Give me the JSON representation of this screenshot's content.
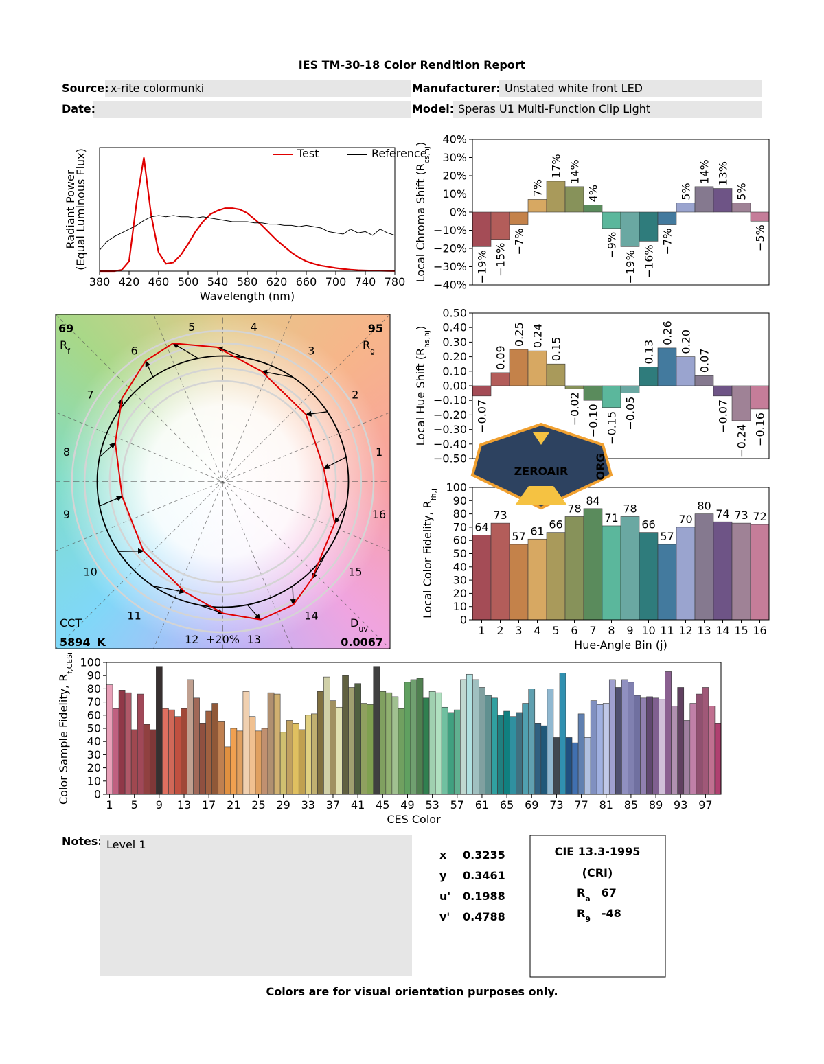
{
  "header": {
    "title": "IES TM-30-18 Color Rendition Report",
    "fields": [
      {
        "label": "Source:",
        "value": "x-rite colormunki"
      },
      {
        "label": "Manufacturer:",
        "value": "Unstated white front LED"
      },
      {
        "label": "Date:"
      },
      {
        "label": "Model:",
        "value": "Speras U1 Multi-Function Clip Light"
      }
    ]
  },
  "chart_data": [
    {
      "type": "line",
      "ylabel": "Radiant Power",
      "ylabel_note": "(Equal Luminous Flux)",
      "xlabel": "Wavelength (nm)",
      "x": [
        380,
        390,
        400,
        410,
        420,
        430,
        440,
        450,
        460,
        470,
        480,
        490,
        500,
        510,
        520,
        530,
        540,
        550,
        560,
        570,
        580,
        590,
        600,
        610,
        620,
        630,
        640,
        650,
        660,
        670,
        680,
        690,
        700,
        710,
        720,
        730,
        740,
        750,
        760,
        770,
        780
      ],
      "xlim": [
        380,
        780
      ],
      "xticks": [
        380,
        420,
        460,
        500,
        540,
        580,
        620,
        660,
        700,
        740,
        780
      ],
      "ylim": [
        0,
        1
      ],
      "legend": "upper right",
      "series": [
        {
          "name": "Test",
          "color": "#e00000",
          "values": [
            0,
            0,
            0,
            0.01,
            0.08,
            0.55,
            0.92,
            0.45,
            0.15,
            0.06,
            0.07,
            0.13,
            0.22,
            0.32,
            0.4,
            0.46,
            0.49,
            0.51,
            0.51,
            0.5,
            0.47,
            0.42,
            0.37,
            0.31,
            0.25,
            0.2,
            0.15,
            0.11,
            0.08,
            0.06,
            0.045,
            0.035,
            0.025,
            0.018,
            0.012,
            0.008,
            0.006,
            0.004,
            0.003,
            0.002,
            0.001
          ]
        },
        {
          "name": "Reference",
          "color": "#000000",
          "values": [
            0.17,
            0.24,
            0.28,
            0.31,
            0.34,
            0.37,
            0.41,
            0.44,
            0.45,
            0.44,
            0.45,
            0.44,
            0.44,
            0.43,
            0.44,
            0.43,
            0.42,
            0.41,
            0.4,
            0.4,
            0.4,
            0.39,
            0.39,
            0.38,
            0.38,
            0.37,
            0.37,
            0.36,
            0.37,
            0.36,
            0.35,
            0.32,
            0.31,
            0.3,
            0.34,
            0.31,
            0.32,
            0.29,
            0.34,
            0.31,
            0.29
          ]
        }
      ]
    },
    {
      "type": "bar",
      "ylabel": {
        "text": "Local Chroma Shift (R",
        "sub": "cs,hj",
        "end": ")"
      },
      "values": [
        -19,
        -15,
        -7,
        7,
        17,
        14,
        4,
        -9,
        -19,
        -16,
        -7,
        5,
        14,
        13,
        5,
        -5
      ],
      "value_labels": [
        "−19%",
        "−15%",
        "−7%",
        "7%",
        "17%",
        "14%",
        "4%",
        "−9%",
        "−19%",
        "−16%",
        "−7%",
        "5%",
        "14%",
        "13%",
        "5%",
        "−5%"
      ],
      "colors": [
        "#a44c56",
        "#b35d5a",
        "#c4824a",
        "#d7a862",
        "#a99a5b",
        "#87925a",
        "#5a8b5c",
        "#5bb79c",
        "#6aa8a2",
        "#2f7c7c",
        "#437a9e",
        "#9aa4cf",
        "#85798f",
        "#6e5486",
        "#9f8296",
        "#c57d99"
      ],
      "ylim": [
        -40,
        40
      ],
      "yticks": [
        {
          "value": -40,
          "label": "−40%"
        },
        {
          "value": -30,
          "label": "−30%"
        },
        {
          "value": -20,
          "label": "−20%"
        },
        {
          "value": -10,
          "label": "−10%"
        },
        {
          "value": 0,
          "label": "0%"
        },
        {
          "value": 10,
          "label": "10%"
        },
        {
          "value": 20,
          "label": "20%"
        },
        {
          "value": 30,
          "label": "30%"
        },
        {
          "value": 40,
          "label": "40%"
        }
      ]
    },
    {
      "type": "bar",
      "ylabel": {
        "text": "Local Hue Shift (R",
        "sub": "hs,hj",
        "end": ")"
      },
      "values": [
        -0.07,
        0.09,
        0.25,
        0.24,
        0.15,
        -0.02,
        -0.1,
        -0.15,
        -0.05,
        0.13,
        0.26,
        0.2,
        0.07,
        -0.07,
        -0.24,
        -0.16
      ],
      "value_labels": [
        "−0.07",
        "0.09",
        "0.25",
        "0.24",
        "0.15",
        "−0.02",
        "−0.10",
        "−0.15",
        "−0.05",
        "0.13",
        "0.26",
        "0.20",
        "0.07",
        "−0.07",
        "−0.24",
        "−0.16"
      ],
      "colors": [
        "#a44c56",
        "#b35d5a",
        "#c4824a",
        "#d7a862",
        "#a99a5b",
        "#87925a",
        "#5a8b5c",
        "#5bb79c",
        "#6aa8a2",
        "#2f7c7c",
        "#437a9e",
        "#9aa4cf",
        "#85798f",
        "#6e5486",
        "#9f8296",
        "#c57d99"
      ],
      "ylim": [
        -0.5,
        0.5
      ],
      "yticks": [
        {
          "value": -0.5,
          "label": "−0.50"
        },
        {
          "value": -0.4,
          "label": "−0.40"
        },
        {
          "value": -0.3,
          "label": "−0.30"
        },
        {
          "value": -0.2,
          "label": "−0.20"
        },
        {
          "value": -0.1,
          "label": "−0.10"
        },
        {
          "value": 0,
          "label": "0.00"
        },
        {
          "value": 0.1,
          "label": "0.10"
        },
        {
          "value": 0.2,
          "label": "0.20"
        },
        {
          "value": 0.3,
          "label": "0.30"
        },
        {
          "value": 0.4,
          "label": "0.40"
        },
        {
          "value": 0.5,
          "label": "0.50"
        }
      ]
    },
    {
      "type": "bar",
      "ylabel": {
        "text": "Local Color Fidelity, R",
        "sub": "fh,j"
      },
      "xlabel": "Hue-Angle Bin (j)",
      "categories": [
        "1",
        "2",
        "3",
        "4",
        "5",
        "6",
        "7",
        "8",
        "9",
        "10",
        "11",
        "12",
        "13",
        "14",
        "15",
        "16"
      ],
      "values": [
        64,
        73,
        57,
        61,
        66,
        78,
        84,
        71,
        78,
        66,
        57,
        70,
        80,
        74,
        73,
        72
      ],
      "data_labels": true,
      "colors": [
        "#a44c56",
        "#b35d5a",
        "#c4824a",
        "#d7a862",
        "#a99a5b",
        "#87925a",
        "#5a8b5c",
        "#5bb79c",
        "#6aa8a2",
        "#2f7c7c",
        "#437a9e",
        "#9aa4cf",
        "#85798f",
        "#6e5486",
        "#9f8296",
        "#c57d99"
      ],
      "ylim": [
        0,
        100
      ],
      "yticks": [
        0,
        10,
        20,
        30,
        40,
        50,
        60,
        70,
        80,
        90,
        100
      ]
    },
    {
      "type": "vector",
      "categories": [
        "1",
        "2",
        "3",
        "4",
        "5",
        "6",
        "7",
        "8",
        "9",
        "10",
        "11",
        "12",
        "13",
        "14",
        "15",
        "16"
      ],
      "rf": {
        "value": 69,
        "label": "R",
        "sub": "f"
      },
      "rg": {
        "value": 95,
        "label": "R",
        "sub": "g"
      },
      "cct": {
        "label": "CCT",
        "value": 5894,
        "unit": "K"
      },
      "duv": {
        "label": "D",
        "sub": "uv",
        "value": 0.0067
      },
      "annotation": "+20%",
      "test_color": "#e00000",
      "reference_color": "#000000"
    },
    {
      "type": "bar",
      "ylabel": {
        "text": "Color Sample Fidelity, R",
        "sub": "f,CESi"
      },
      "xlabel": "CES Color",
      "categories": [
        "1",
        null,
        null,
        null,
        "5",
        null,
        null,
        null,
        "9",
        null,
        null,
        null,
        "13",
        null,
        null,
        null,
        "17",
        null,
        null,
        null,
        "21",
        null,
        null,
        null,
        "25",
        null,
        null,
        null,
        "29",
        null,
        null,
        null,
        "33",
        null,
        null,
        null,
        "37",
        null,
        null,
        null,
        "41",
        null,
        null,
        null,
        "45",
        null,
        null,
        null,
        "49",
        null,
        null,
        null,
        "53",
        null,
        null,
        null,
        "57",
        null,
        null,
        null,
        "61",
        null,
        null,
        null,
        "65",
        null,
        null,
        null,
        "69",
        null,
        null,
        null,
        "73",
        null,
        null,
        null,
        "77",
        null,
        null,
        null,
        "81",
        null,
        null,
        null,
        "85",
        null,
        null,
        null,
        "89",
        null,
        null,
        null,
        "93",
        null,
        null,
        null,
        "97",
        null,
        null
      ],
      "values": [
        83,
        65,
        79,
        77,
        49,
        76,
        53,
        49,
        97,
        65,
        64,
        59,
        65,
        87,
        73,
        54,
        63,
        69,
        55,
        36,
        50,
        48,
        78,
        59,
        48,
        50,
        77,
        76,
        47,
        56,
        54,
        49,
        60,
        61,
        78,
        89,
        71,
        66,
        90,
        81,
        84,
        69,
        68,
        97,
        78,
        77,
        74,
        65,
        85,
        87,
        88,
        73,
        78,
        77,
        66,
        62,
        64,
        87,
        91,
        87,
        81,
        75,
        73,
        60,
        63,
        59,
        62,
        69,
        80,
        54,
        52,
        80,
        43,
        92,
        43,
        39,
        61,
        43,
        71,
        68,
        69,
        87,
        81,
        87,
        85,
        75,
        73,
        74,
        73,
        72,
        93,
        67,
        81,
        56,
        69,
        76,
        81,
        67,
        54
      ],
      "colors": [
        "#e8a0b8",
        "#c06080",
        "#903848",
        "#b05868",
        "#a04850",
        "#a04858",
        "#904040",
        "#803838",
        "#383030",
        "#e07060",
        "#d06858",
        "#c05040",
        "#a04838",
        "#c0a090",
        "#a06858",
        "#905040",
        "#a06040",
        "#905838",
        "#c08050",
        "#e09040",
        "#f0a050",
        "#e0a060",
        "#f0d0b0",
        "#f0c090",
        "#e0a060",
        "#c09070",
        "#b09070",
        "#d0b070",
        "#d0c070",
        "#c0a060",
        "#e0c060",
        "#c0a050",
        "#e0d080",
        "#c0b070",
        "#807040",
        "#d0d0a8",
        "#a09060",
        "#e0e0b0",
        "#606040",
        "#a0a070",
        "#506040",
        "#90a060",
        "#80a050",
        "#404040",
        "#80a060",
        "#90b070",
        "#a0c090",
        "#70a060",
        "#60a060",
        "#70a070",
        "#508050",
        "#308050",
        "#a0d0b0",
        "#b0e0c0",
        "#70c0a0",
        "#40a080",
        "#60b090",
        "#c0d8d0",
        "#b0e0e0",
        "#a0c0c0",
        "#80a0a0",
        "#609090",
        "#30a0a0",
        "#208080",
        "#108080",
        "#3090a0",
        "#407080",
        "#50a0b0",
        "#60a0b0",
        "#306080",
        "#205878",
        "#90b8d0",
        "#404850",
        "#3090b0",
        "#205080",
        "#4070b0",
        "#6080b0",
        "#b0c0e0",
        "#8090c0",
        "#a0b0e0",
        "#c0c8e8",
        "#a0a0d0",
        "#505070",
        "#9090c0",
        "#8080b0",
        "#7070a0",
        "#9080b0",
        "#604870",
        "#806090",
        "#d0c0d8",
        "#8a6090",
        "#b090b0",
        "#604060",
        "#a080a0",
        "#c080a8",
        "#905070",
        "#a05878",
        "#c07090",
        "#b04070"
      ],
      "ylim": [
        0,
        100
      ],
      "yticks": [
        0,
        10,
        20,
        30,
        40,
        50,
        60,
        70,
        80,
        90,
        100
      ]
    }
  ],
  "notes": {
    "label": "Notes:",
    "text": "Level 1"
  },
  "chromaticity": [
    {
      "label": "x",
      "value": 0.3235
    },
    {
      "label": "y",
      "value": 0.3461
    },
    {
      "label": "u'",
      "value": 0.1988
    },
    {
      "label": "v'",
      "value": 0.4788
    }
  ],
  "cri": {
    "title": "CIE 13.3-1995",
    "subtitle": "(CRI)",
    "indices": [
      {
        "label": "R",
        "sub": "a",
        "value": 67
      },
      {
        "label": "R",
        "sub": "9",
        "value": -48
      }
    ]
  },
  "watermark": {
    "text": "ZEROAIR",
    "small": "ORG"
  },
  "footer": "Colors are for visual orientation purposes only."
}
